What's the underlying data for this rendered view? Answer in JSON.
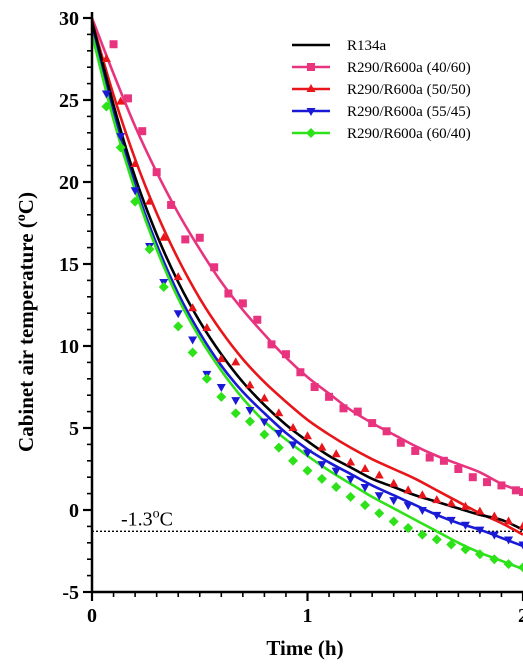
{
  "chart_data": {
    "type": "scatter",
    "title": "",
    "xlabel": "Time (h)",
    "ylabel": "Cabinet air temperature (°C)",
    "ylabel_parts": {
      "before": "Cabinet air temperature (",
      "sup": "o",
      "after": "C)"
    },
    "xlim": [
      0,
      2
    ],
    "ylim": [
      -5,
      30
    ],
    "x_ticks": [
      {
        "value": 0,
        "label": "0"
      },
      {
        "value": 1,
        "label": "1"
      },
      {
        "value": 2,
        "label": "2"
      }
    ],
    "y_ticks": [
      {
        "value": -5,
        "label": "-5"
      },
      {
        "value": 0,
        "label": "0"
      },
      {
        "value": 5,
        "label": "5"
      },
      {
        "value": 10,
        "label": "10"
      },
      {
        "value": 15,
        "label": "15"
      },
      {
        "value": 20,
        "label": "20"
      },
      {
        "value": 25,
        "label": "25"
      },
      {
        "value": 30,
        "label": "30"
      }
    ],
    "legend_position": "top-right",
    "reference_line": {
      "y": -1.3,
      "style": "dotted",
      "label_parts": {
        "before": "-1.3",
        "sup": "o",
        "after": "C"
      }
    },
    "series": [
      {
        "name": "R134a",
        "color": "#000000",
        "marker": "none",
        "fit": {
          "t": [
            0,
            0.1,
            0.2,
            0.3,
            0.4,
            0.5,
            0.6,
            0.7,
            0.8,
            0.9,
            1.0,
            1.1,
            1.2,
            1.3,
            1.4,
            1.5,
            1.6,
            1.7,
            1.8,
            1.9,
            2.0
          ],
          "y": [
            29.8,
            24.7,
            20.3,
            16.8,
            13.9,
            11.5,
            9.5,
            7.8,
            6.4,
            5.2,
            4.2,
            3.3,
            2.6,
            1.9,
            1.4,
            0.9,
            0.5,
            0.1,
            -0.3,
            -0.6,
            -1.2
          ]
        }
      },
      {
        "name": "R290/R600a (40/60)",
        "color": "#e8347f",
        "marker": "square",
        "points": {
          "t": [
            0.1,
            0.167,
            0.233,
            0.3,
            0.367,
            0.433,
            0.5,
            0.567,
            0.633,
            0.7,
            0.767,
            0.833,
            0.9,
            0.967,
            1.033,
            1.1,
            1.167,
            1.233,
            1.3,
            1.367,
            1.433,
            1.5,
            1.567,
            1.633,
            1.7,
            1.767,
            1.833,
            1.9,
            1.967,
            2.0
          ],
          "y": [
            28.4,
            25.1,
            23.1,
            20.6,
            18.6,
            16.5,
            16.6,
            14.8,
            13.2,
            12.6,
            11.6,
            10.1,
            9.5,
            8.4,
            7.5,
            6.9,
            6.2,
            6.0,
            5.3,
            4.8,
            4.1,
            3.6,
            3.2,
            3.0,
            2.5,
            2.0,
            1.7,
            1.5,
            1.2,
            1.1
          ]
        },
        "fit": {
          "t": [
            0,
            0.1,
            0.2,
            0.3,
            0.4,
            0.5,
            0.6,
            0.7,
            0.8,
            0.9,
            1.0,
            1.1,
            1.2,
            1.3,
            1.4,
            1.5,
            1.6,
            1.7,
            1.8,
            1.9,
            2.0
          ],
          "y": [
            30.0,
            26.6,
            23.4,
            20.6,
            18.1,
            15.9,
            13.9,
            12.2,
            10.7,
            9.3,
            8.1,
            7.1,
            6.1,
            5.3,
            4.6,
            3.9,
            3.3,
            2.8,
            2.3,
            1.6,
            1.1
          ]
        }
      },
      {
        "name": "R290/R600a (50/50)",
        "color": "#e8161b",
        "marker": "triangle-up",
        "points": {
          "t": [
            0.067,
            0.133,
            0.2,
            0.267,
            0.333,
            0.4,
            0.467,
            0.533,
            0.6,
            0.667,
            0.733,
            0.8,
            0.867,
            0.933,
            1.0,
            1.067,
            1.133,
            1.2,
            1.267,
            1.333,
            1.4,
            1.467,
            1.533,
            1.6,
            1.667,
            1.733,
            1.8,
            1.867,
            1.933,
            2.0
          ],
          "y": [
            27.5,
            24.9,
            21.1,
            18.8,
            16.6,
            14.2,
            12.3,
            11.1,
            9.2,
            9.0,
            7.6,
            6.8,
            5.9,
            5.0,
            4.5,
            3.8,
            3.4,
            2.9,
            2.5,
            2.1,
            1.6,
            1.2,
            0.9,
            0.6,
            0.4,
            0.2,
            -0.1,
            -0.4,
            -0.7,
            -1.0
          ]
        },
        "fit": {
          "t": [
            0,
            0.1,
            0.2,
            0.3,
            0.4,
            0.5,
            0.6,
            0.7,
            0.8,
            0.9,
            1.0,
            1.1,
            1.2,
            1.3,
            1.4,
            1.5,
            1.6,
            1.7,
            1.8,
            1.9,
            2.0
          ],
          "y": [
            29.8,
            25.3,
            21.4,
            18.1,
            15.3,
            12.9,
            10.9,
            9.2,
            7.8,
            6.6,
            5.5,
            4.6,
            3.8,
            3.1,
            2.5,
            1.9,
            1.2,
            0.5,
            -0.2,
            -0.8,
            -1.5
          ]
        }
      },
      {
        "name": "R290/R600a (55/45)",
        "color": "#1a1ad6",
        "marker": "triangle-down",
        "points": {
          "t": [
            0.067,
            0.133,
            0.2,
            0.267,
            0.333,
            0.4,
            0.467,
            0.533,
            0.6,
            0.667,
            0.733,
            0.8,
            0.867,
            0.933,
            1.0,
            1.067,
            1.133,
            1.2,
            1.267,
            1.333,
            1.4,
            1.467,
            1.533,
            1.6,
            1.667,
            1.733,
            1.8,
            1.867,
            1.933,
            2.0
          ],
          "y": [
            25.4,
            22.8,
            19.5,
            16.1,
            13.9,
            12.0,
            10.4,
            8.3,
            7.5,
            6.7,
            6.1,
            5.4,
            4.7,
            4.0,
            3.5,
            2.8,
            2.4,
            1.9,
            1.4,
            0.9,
            0.6,
            0.3,
            0.0,
            -0.3,
            -0.6,
            -0.9,
            -1.2,
            -1.5,
            -1.8,
            -2.1
          ]
        },
        "fit": {
          "t": [
            0,
            0.1,
            0.2,
            0.3,
            0.4,
            0.5,
            0.6,
            0.7,
            0.8,
            0.9,
            1.0,
            1.1,
            1.2,
            1.3,
            1.4,
            1.5,
            1.6,
            1.7,
            1.8,
            1.9,
            2.0
          ],
          "y": [
            29.4,
            24.2,
            19.8,
            16.2,
            13.2,
            10.8,
            8.8,
            7.2,
            5.9,
            4.7,
            3.7,
            2.9,
            2.2,
            1.5,
            0.9,
            0.3,
            -0.3,
            -0.8,
            -1.2,
            -1.7,
            -2.2
          ]
        }
      },
      {
        "name": "R290/R600a (60/40)",
        "color": "#2ee21a",
        "marker": "diamond",
        "points": {
          "t": [
            0.067,
            0.133,
            0.2,
            0.267,
            0.333,
            0.4,
            0.467,
            0.533,
            0.6,
            0.667,
            0.733,
            0.8,
            0.867,
            0.933,
            1.0,
            1.067,
            1.133,
            1.2,
            1.267,
            1.333,
            1.4,
            1.467,
            1.533,
            1.6,
            1.667,
            1.733,
            1.8,
            1.867,
            1.933,
            2.0
          ],
          "y": [
            24.6,
            22.1,
            18.8,
            15.9,
            13.6,
            11.2,
            9.6,
            8.0,
            6.9,
            5.9,
            5.4,
            4.6,
            3.8,
            3.0,
            2.4,
            1.9,
            1.4,
            0.8,
            0.3,
            -0.2,
            -0.7,
            -1.1,
            -1.5,
            -1.8,
            -2.1,
            -2.4,
            -2.7,
            -3.0,
            -3.3,
            -3.5
          ]
        },
        "fit": {
          "t": [
            0,
            0.1,
            0.2,
            0.3,
            0.4,
            0.5,
            0.6,
            0.7,
            0.8,
            0.9,
            1.0,
            1.1,
            1.2,
            1.3,
            1.4,
            1.5,
            1.6,
            1.7,
            1.8,
            1.9,
            2.0
          ],
          "y": [
            29.0,
            23.8,
            19.5,
            15.9,
            12.9,
            10.5,
            8.5,
            6.8,
            5.4,
            4.3,
            3.3,
            2.4,
            1.6,
            0.8,
            0.1,
            -0.6,
            -1.3,
            -2.0,
            -2.6,
            -3.1,
            -3.6
          ]
        }
      }
    ]
  }
}
